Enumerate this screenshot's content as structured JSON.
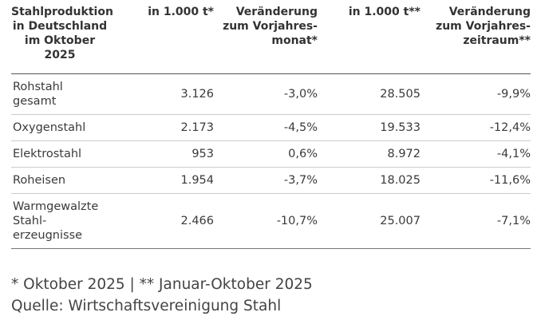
{
  "table": {
    "header": [
      "Stahlproduktion\nin Deutschland\nim Oktober\n2025",
      "in 1.000 t*",
      "Veränderung\nzum Vorjahres-\nmonat*",
      "in 1.000 t**",
      "Veränderung\nzum Vorjahres-\nzeitraum**"
    ],
    "rows": [
      [
        "Rohstahl\ngesamt",
        "3.126",
        "-3,0%",
        "28.505",
        "-9,9%"
      ],
      [
        "Oxygenstahl",
        "2.173",
        "-4,5%",
        "19.533",
        "-12,4%"
      ],
      [
        "Elektrostahl",
        "953",
        "0,6%",
        "8.972",
        "-4,1%"
      ],
      [
        "Roheisen",
        "1.954",
        "-3,7%",
        "18.025",
        "-11,6%"
      ],
      [
        "Warmgewalzte\nStahl-\nerzeugnisse",
        "2.466",
        "-10,7%",
        "25.007",
        "-7,1%"
      ]
    ]
  },
  "footnotes": [
    "* Oktober 2025 | ** Januar-Oktober 2025",
    "Quelle: Wirtschaftsvereinigung Stahl"
  ]
}
